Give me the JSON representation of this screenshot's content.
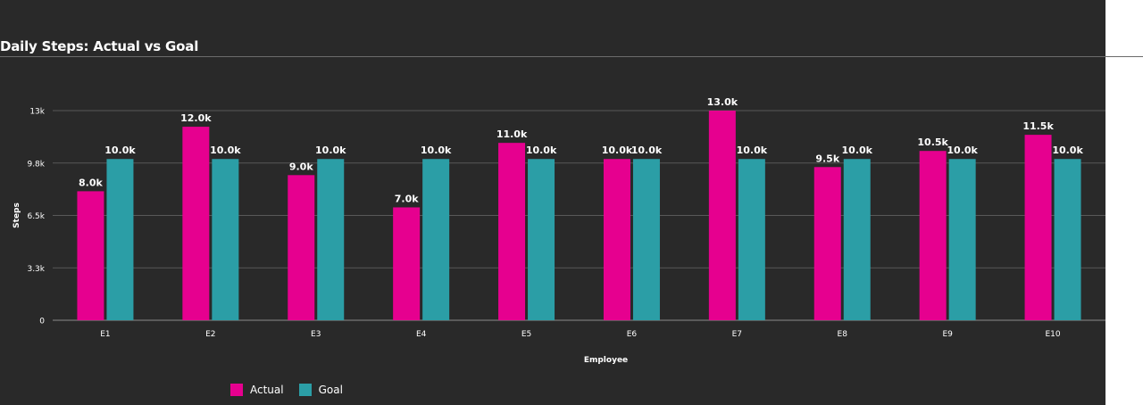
{
  "chart_data": {
    "type": "bar",
    "title": "Daily Steps: Actual vs Goal",
    "xlabel": "Employee",
    "ylabel": "Steps",
    "categories": [
      "E1",
      "E2",
      "E3",
      "E4",
      "E5",
      "E6",
      "E7",
      "E8",
      "E9",
      "E10"
    ],
    "series": [
      {
        "name": "Actual",
        "color": "#e6008f",
        "values": [
          8000,
          12000,
          9000,
          7000,
          11000,
          10000,
          13000,
          9500,
          10500,
          11500
        ]
      },
      {
        "name": "Goal",
        "color": "#2b9ea6",
        "values": [
          10000,
          10000,
          10000,
          10000,
          10000,
          10000,
          10000,
          10000,
          10000,
          10000
        ]
      }
    ],
    "data_labels": [
      [
        "8.0k",
        "12.0k",
        "9.0k",
        "7.0k",
        "11.0k",
        "10.0k",
        "13.0k",
        "9.5k",
        "10.5k",
        "11.5k"
      ],
      [
        "10.0k",
        "10.0k",
        "10.0k",
        "10.0k",
        "10.0k",
        "10.0k",
        "10.0k",
        "10.0k",
        "10.0k",
        "10.0k"
      ]
    ],
    "ylim": [
      0,
      13000
    ],
    "yticks": [
      0,
      3250,
      6500,
      9750,
      13000
    ],
    "ytick_labels": [
      "0",
      "3.3k",
      "6.5k",
      "9.8k",
      "13k"
    ],
    "grid": true,
    "legend_position": "bottom-left"
  }
}
